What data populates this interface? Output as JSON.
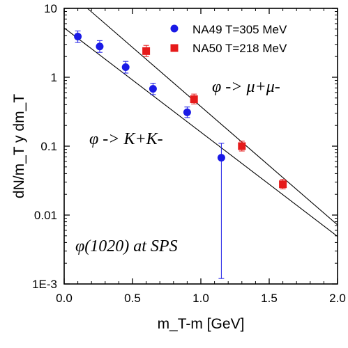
{
  "chart_data": {
    "type": "scatter",
    "xlabel": "m_T-m  [GeV]",
    "ylabel": "dN/m_T  y dm_T",
    "xlim": [
      0.0,
      2.0
    ],
    "ylim": [
      0.001,
      10
    ],
    "y_scale": "log",
    "grid": false,
    "legend_position": "top-right",
    "x_ticks": [
      {
        "value": 0.0,
        "label": "0.0"
      },
      {
        "value": 0.5,
        "label": "0.5"
      },
      {
        "value": 1.0,
        "label": "1.0"
      },
      {
        "value": 1.5,
        "label": "1.5"
      },
      {
        "value": 2.0,
        "label": "2.0"
      }
    ],
    "y_ticks": [
      {
        "value": 10,
        "label": "10"
      },
      {
        "value": 1,
        "label": "1"
      },
      {
        "value": 0.1,
        "label": "0.1"
      },
      {
        "value": 0.01,
        "label": "0.01"
      },
      {
        "value": 0.001,
        "label": "1E-3"
      }
    ],
    "series": [
      {
        "name": "NA49 T=305 MeV",
        "marker": "circle",
        "color": "#1a1ae6",
        "points": [
          {
            "x": 0.1,
            "y": 3.9,
            "lo": 3.2,
            "hi": 4.7
          },
          {
            "x": 0.26,
            "y": 2.8,
            "lo": 2.3,
            "hi": 3.4
          },
          {
            "x": 0.45,
            "y": 1.4,
            "lo": 1.15,
            "hi": 1.7
          },
          {
            "x": 0.65,
            "y": 0.68,
            "lo": 0.56,
            "hi": 0.82
          },
          {
            "x": 0.9,
            "y": 0.31,
            "lo": 0.26,
            "hi": 0.37
          },
          {
            "x": 1.15,
            "y": 0.068,
            "lo": 0.0012,
            "hi": 0.11
          }
        ]
      },
      {
        "name": "NA50 T=218 MeV",
        "marker": "square",
        "color": "#e61a1a",
        "points": [
          {
            "x": 0.6,
            "y": 2.4,
            "lo": 2.0,
            "hi": 2.9
          },
          {
            "x": 0.95,
            "y": 0.48,
            "lo": 0.41,
            "hi": 0.57
          },
          {
            "x": 1.3,
            "y": 0.1,
            "lo": 0.085,
            "hi": 0.118
          },
          {
            "x": 1.6,
            "y": 0.028,
            "lo": 0.024,
            "hi": 0.033
          }
        ]
      }
    ],
    "fit_lines": [
      {
        "label": "φ -> K+K-",
        "x": [
          0.0,
          2.0
        ],
        "y": [
          5.2,
          0.0049
        ]
      },
      {
        "label": "φ -> μ+μ-",
        "x": [
          0.17,
          2.0
        ],
        "y": [
          10,
          0.0072
        ]
      }
    ],
    "annotations": [
      {
        "label": "φ -> μ+μ-"
      },
      {
        "label": "φ -> K+K-"
      },
      {
        "label": "φ(1020) at SPS"
      }
    ]
  }
}
